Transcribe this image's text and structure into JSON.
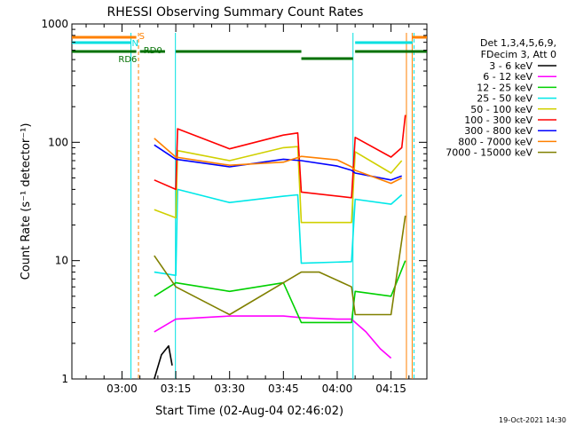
{
  "chart_data": {
    "type": "line",
    "title": "RHESSI Observing Summary Count Rates",
    "xlabel": "Start Time (02-Aug-04 02:46:02)",
    "ylabel": "Count Rate (s⁻¹ detector⁻¹)",
    "y_scale": "log",
    "ylim": [
      1,
      1000
    ],
    "xlim": [
      "02:46:02",
      "04:25:00"
    ],
    "x_ticks": [
      "03:00",
      "03:15",
      "03:30",
      "03:45",
      "04:00",
      "04:15"
    ],
    "y_ticks": [
      "1",
      "10",
      "100",
      "1000"
    ],
    "footer_date": "19-Oct-2021 14:30",
    "legend_header": [
      "Det 1,3,4,5,6,9,",
      "FDecim 3, Att 0"
    ],
    "legend_position": "right",
    "series": [
      {
        "name": "3 - 6 keV",
        "color": "#000000",
        "x": [
          "03:09",
          "03:11",
          "03:13",
          "03:14"
        ],
        "values": [
          1,
          1.6,
          1.9,
          1.3
        ]
      },
      {
        "name": "6 - 12 keV",
        "color": "#ff00ff",
        "x": [
          "03:09",
          "03:15",
          "03:30",
          "03:45",
          "03:50",
          "04:00",
          "04:04",
          "04:08",
          "04:12",
          "04:15"
        ],
        "values": [
          2.5,
          3.2,
          3.4,
          3.4,
          3.3,
          3.2,
          3.2,
          2.5,
          1.8,
          1.5
        ]
      },
      {
        "name": "12 - 25 keV",
        "color": "#00d000",
        "x": [
          "03:09",
          "03:15",
          "03:30",
          "03:45",
          "03:50",
          "03:55",
          "04:04",
          "04:05",
          "04:15",
          "04:19"
        ],
        "values": [
          5,
          6.5,
          5.5,
          6.5,
          3,
          3,
          3,
          5.5,
          5,
          10
        ]
      },
      {
        "name": "25 - 50 keV",
        "color": "#00e8e8",
        "x": [
          "03:09",
          "03:15",
          "03:15.5",
          "03:30",
          "03:45",
          "03:49",
          "03:50",
          "04:04",
          "04:05",
          "04:15",
          "04:18"
        ],
        "values": [
          8,
          7.5,
          40,
          31,
          35,
          36,
          9.5,
          9.8,
          33,
          30,
          36
        ]
      },
      {
        "name": "50 - 100 keV",
        "color": "#d0d000",
        "x": [
          "03:09",
          "03:15",
          "03:15.5",
          "03:30",
          "03:45",
          "03:49",
          "03:50",
          "04:04",
          "04:05",
          "04:15",
          "04:18"
        ],
        "values": [
          27,
          23,
          85,
          70,
          90,
          92,
          21,
          21,
          83,
          55,
          70
        ]
      },
      {
        "name": "100 - 300 keV",
        "color": "#ff0000",
        "x": [
          "03:09",
          "03:15",
          "03:15.5",
          "03:30",
          "03:45",
          "03:49",
          "03:50",
          "04:04",
          "04:05",
          "04:15",
          "04:18",
          "04:19"
        ],
        "values": [
          48,
          40,
          130,
          88,
          115,
          120,
          38,
          34,
          110,
          75,
          90,
          170
        ]
      },
      {
        "name": "300 - 800 keV",
        "color": "#0000ff",
        "x": [
          "03:09",
          "03:15",
          "03:30",
          "03:45",
          "03:50",
          "04:00",
          "04:04",
          "04:05",
          "04:15",
          "04:18"
        ],
        "values": [
          95,
          72,
          62,
          72,
          70,
          63,
          58,
          55,
          48,
          52
        ]
      },
      {
        "name": "800 - 7000 keV",
        "color": "#ff8000",
        "x": [
          "03:09",
          "03:15",
          "03:30",
          "03:45",
          "03:50",
          "04:00",
          "04:04",
          "04:05",
          "04:15",
          "04:18"
        ],
        "values": [
          108,
          75,
          64,
          68,
          76,
          71,
          62,
          58,
          45,
          50
        ]
      },
      {
        "name": "7000 - 15000 keV",
        "color": "#808000",
        "x": [
          "03:09",
          "03:15",
          "03:30",
          "03:45",
          "03:50",
          "03:55",
          "04:04",
          "04:05",
          "04:15",
          "04:19"
        ],
        "values": [
          11,
          6,
          3.5,
          6.5,
          8,
          8,
          6,
          3.5,
          3.5,
          24
        ]
      }
    ],
    "state_bars": {
      "s_label": "S",
      "n_label": "N",
      "rd6_label": "RD6",
      "rd0_label": "RD0"
    }
  }
}
